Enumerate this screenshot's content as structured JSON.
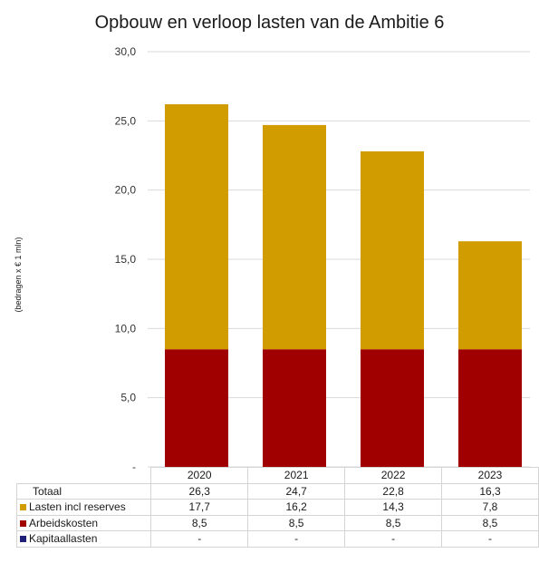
{
  "chart_data": {
    "type": "bar",
    "stacked": true,
    "title": "Opbouw en verloop lasten van de Ambitie 6",
    "ylabel": "(bedragen x € 1 mln)",
    "categories": [
      "2020",
      "2021",
      "2022",
      "2023"
    ],
    "ylim": [
      0,
      30
    ],
    "yticks": [
      "-",
      "5,0",
      "10,0",
      "15,0",
      "20,0",
      "25,0",
      "30,0"
    ],
    "grid": true,
    "legend": "data table below chart",
    "totals_label": "Totaal",
    "totals_text": [
      "26,3",
      "24,7",
      "22,8",
      "16,3"
    ],
    "series": [
      {
        "name": "Kapitaallasten",
        "color": "#1f1f7a",
        "values": [
          0,
          0,
          0,
          0
        ],
        "text": [
          "-",
          "-",
          "-",
          "-"
        ]
      },
      {
        "name": "Arbeidskosten",
        "color": "#a00000",
        "values": [
          8.5,
          8.5,
          8.5,
          8.5
        ],
        "text": [
          "8,5",
          "8,5",
          "8,5",
          "8,5"
        ]
      },
      {
        "name": "Lasten incl reserves",
        "color": "#d09c00",
        "values": [
          17.7,
          16.2,
          14.3,
          7.8
        ],
        "text": [
          "17,7",
          "16,2",
          "14,3",
          "7,8"
        ]
      }
    ]
  }
}
